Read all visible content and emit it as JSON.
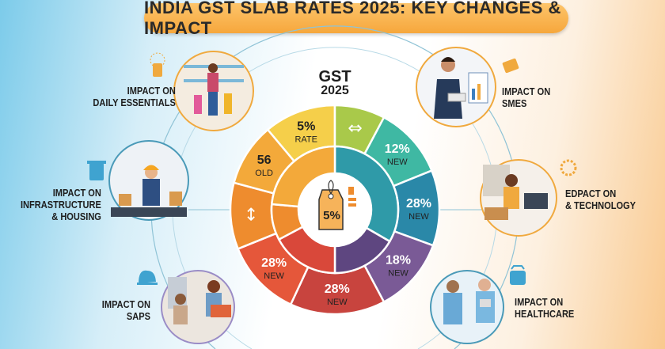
{
  "title": "INDIA GST SLAB RATES 2025: KEY CHANGES & IMPACT",
  "center": {
    "heading_line1": "GST",
    "heading_line2": "2025",
    "tag_value": "5%"
  },
  "wheel_segments": [
    {
      "value": "5%",
      "caption": "RATE",
      "color": "#f5cf4a"
    },
    {
      "value": "",
      "caption": "",
      "color": "#a9c94a",
      "icon": "double-arrow-icon"
    },
    {
      "value": "12%",
      "caption": "NEW",
      "color": "#3fb8a3"
    },
    {
      "value": "28%",
      "caption": "NEW",
      "color": "#2a88a8"
    },
    {
      "value": "18%",
      "caption": "NEW",
      "color": "#7a5a96"
    },
    {
      "value": "28%",
      "caption": "NEW",
      "color": "#c8443e"
    },
    {
      "value": "28%",
      "caption": "NEW",
      "color": "#e5573a"
    },
    {
      "value": "",
      "caption": "",
      "color": "#ee8c2e",
      "icon": "vertical-arrow-icon"
    },
    {
      "value": "56",
      "caption": "OLD",
      "color": "#f3a93a"
    }
  ],
  "impacts": {
    "daily": {
      "line1": "IMPACT ON",
      "line2": "DAILY ESSENTIALS"
    },
    "infra": {
      "line1": "IMPACT ON",
      "line2": "INFRASTRUCTURE",
      "line3": "& HOUSING"
    },
    "saps": {
      "line1": "IMPACT ON",
      "line2": "SAPS"
    },
    "smes": {
      "line1": "IMPACT ON",
      "line2": "SMES"
    },
    "tech": {
      "line1": "EDPACT ON",
      "line2": "& TECHNOLOGY"
    },
    "health": {
      "line1": "IMPACT ON",
      "line2": "HEALTHCARE"
    }
  }
}
